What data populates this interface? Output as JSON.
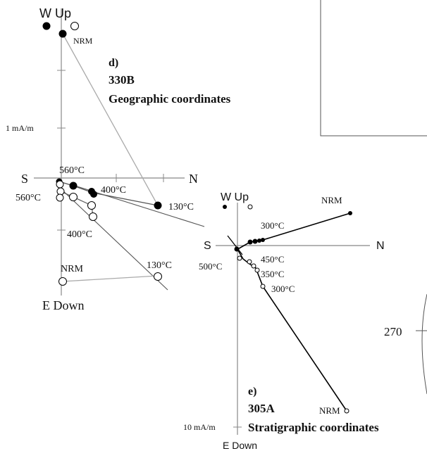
{
  "panel_d": {
    "axis_top": "W  Up",
    "axis_bottom": "E  Down",
    "axis_left": "S",
    "axis_right": "N",
    "scale_label": "1 mA/m",
    "panel_label": "d)",
    "site": "330B",
    "coords": "Geographic coordinates",
    "labels": {
      "nrm_upper": "NRM",
      "t560_top": "560°C",
      "t560_left": "560°C",
      "t400_right": "400°C",
      "t130_right": "130°C",
      "t400_lower": "400°C",
      "nrm_lower": "NRM",
      "t130_lower": "130°C"
    }
  },
  "panel_e": {
    "axis_top": "W  Up",
    "axis_bottom": "E  Down",
    "axis_left": "S",
    "axis_right": "N",
    "scale_label": "10 mA/m",
    "panel_label": "e)",
    "site": "305A",
    "coords": "Stratigraphic coordinates",
    "labels": {
      "nrm_upper": "NRM",
      "t300_upper": "300°C",
      "t450": "450°C",
      "t350": "350°C",
      "t300_lower": "300°C",
      "t500": "500°C",
      "nrm_lower": "NRM"
    }
  },
  "stereonet": {
    "label_270": "270"
  }
}
